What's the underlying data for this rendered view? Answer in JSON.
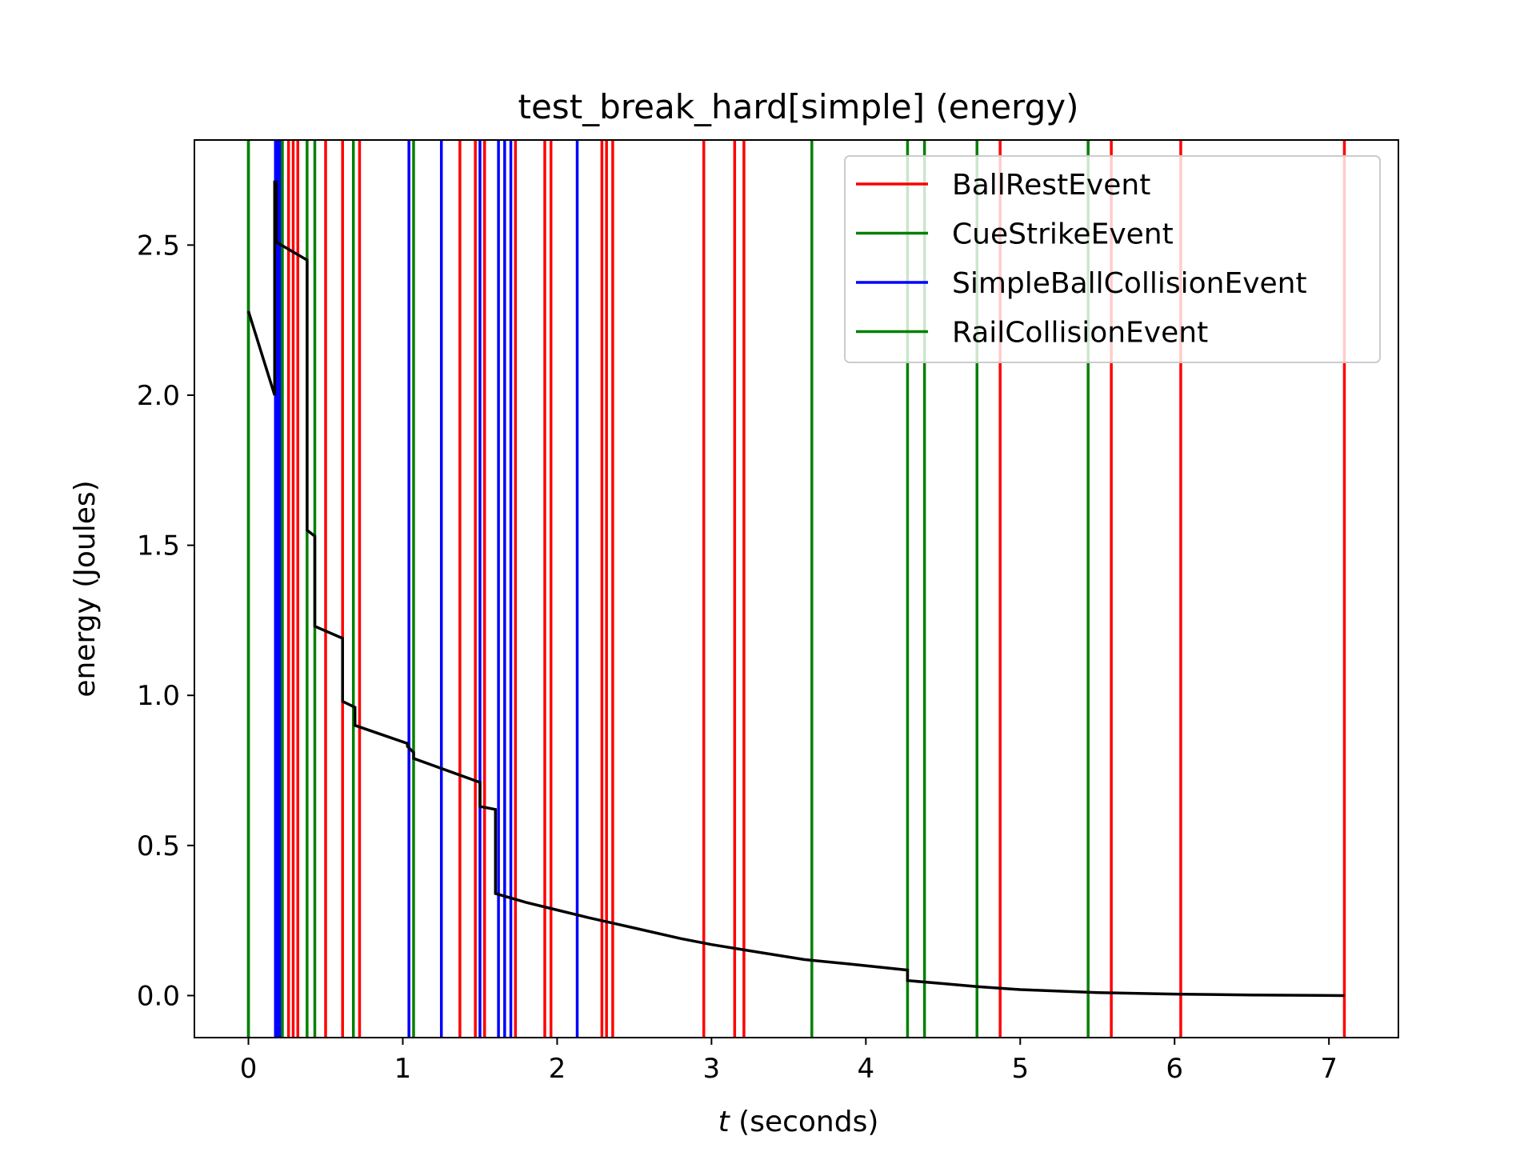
{
  "chart_data": {
    "type": "line",
    "title": "test_break_hard[simple] (energy)",
    "xlabel_var": "t",
    "xlabel_rest": " (seconds)",
    "ylabel": "energy (Joules)",
    "xlim": [
      -0.35,
      7.45
    ],
    "ylim": [
      -0.14,
      2.85
    ],
    "xticks": [
      0,
      1,
      2,
      3,
      4,
      5,
      6,
      7
    ],
    "yticks": [
      0.0,
      0.5,
      1.0,
      1.5,
      2.0,
      2.5
    ],
    "ytick_labels": [
      "0.0",
      "0.5",
      "1.0",
      "1.5",
      "2.0",
      "2.5"
    ],
    "legend_position": "top-right",
    "grid": false,
    "colors": {
      "BallRestEvent": "#ff0000",
      "CueStrikeEvent": "#008000",
      "SimpleBallCollisionEvent": "#0000ff",
      "RailCollisionEvent": "#008000",
      "energy": "#000000"
    },
    "legend": [
      "BallRestEvent",
      "CueStrikeEvent",
      "SimpleBallCollisionEvent",
      "RailCollisionEvent"
    ],
    "event_lines": {
      "CueStrikeEvent": [
        0.0
      ],
      "SimpleBallCollisionEvent": [
        0.175,
        0.19,
        0.205,
        1.04,
        1.25,
        1.5,
        1.62,
        1.66,
        1.7,
        2.13
      ],
      "RailCollisionEvent": [
        0.0,
        0.22,
        0.38,
        0.43,
        0.68,
        1.07,
        3.65,
        4.27,
        4.38,
        4.72,
        5.44
      ],
      "BallRestEvent": [
        0.26,
        0.29,
        0.32,
        0.5,
        0.61,
        0.72,
        1.04,
        1.37,
        1.47,
        1.53,
        1.73,
        1.92,
        1.96,
        2.29,
        2.32,
        2.36,
        2.95,
        3.15,
        3.21,
        4.87,
        5.59,
        6.04,
        7.1
      ]
    },
    "energy_series": {
      "x": [
        0.0,
        0.17,
        0.17,
        0.18,
        0.18,
        0.38,
        0.38,
        0.43,
        0.43,
        0.61,
        0.61,
        0.69,
        0.69,
        1.03,
        1.03,
        1.07,
        1.07,
        1.5,
        1.5,
        1.6,
        1.6,
        1.8,
        2.0,
        2.2,
        2.5,
        2.8,
        3.0,
        3.3,
        3.6,
        3.9,
        4.27,
        4.27,
        4.5,
        4.72,
        5.0,
        5.5,
        6.0,
        6.5,
        7.1
      ],
      "y": [
        2.28,
        2.0,
        2.71,
        2.71,
        2.51,
        2.45,
        1.55,
        1.53,
        1.23,
        1.19,
        0.98,
        0.96,
        0.9,
        0.84,
        0.83,
        0.81,
        0.79,
        0.71,
        0.63,
        0.62,
        0.34,
        0.31,
        0.285,
        0.26,
        0.225,
        0.19,
        0.17,
        0.145,
        0.12,
        0.105,
        0.085,
        0.05,
        0.04,
        0.03,
        0.02,
        0.01,
        0.005,
        0.002,
        0.0
      ]
    }
  }
}
